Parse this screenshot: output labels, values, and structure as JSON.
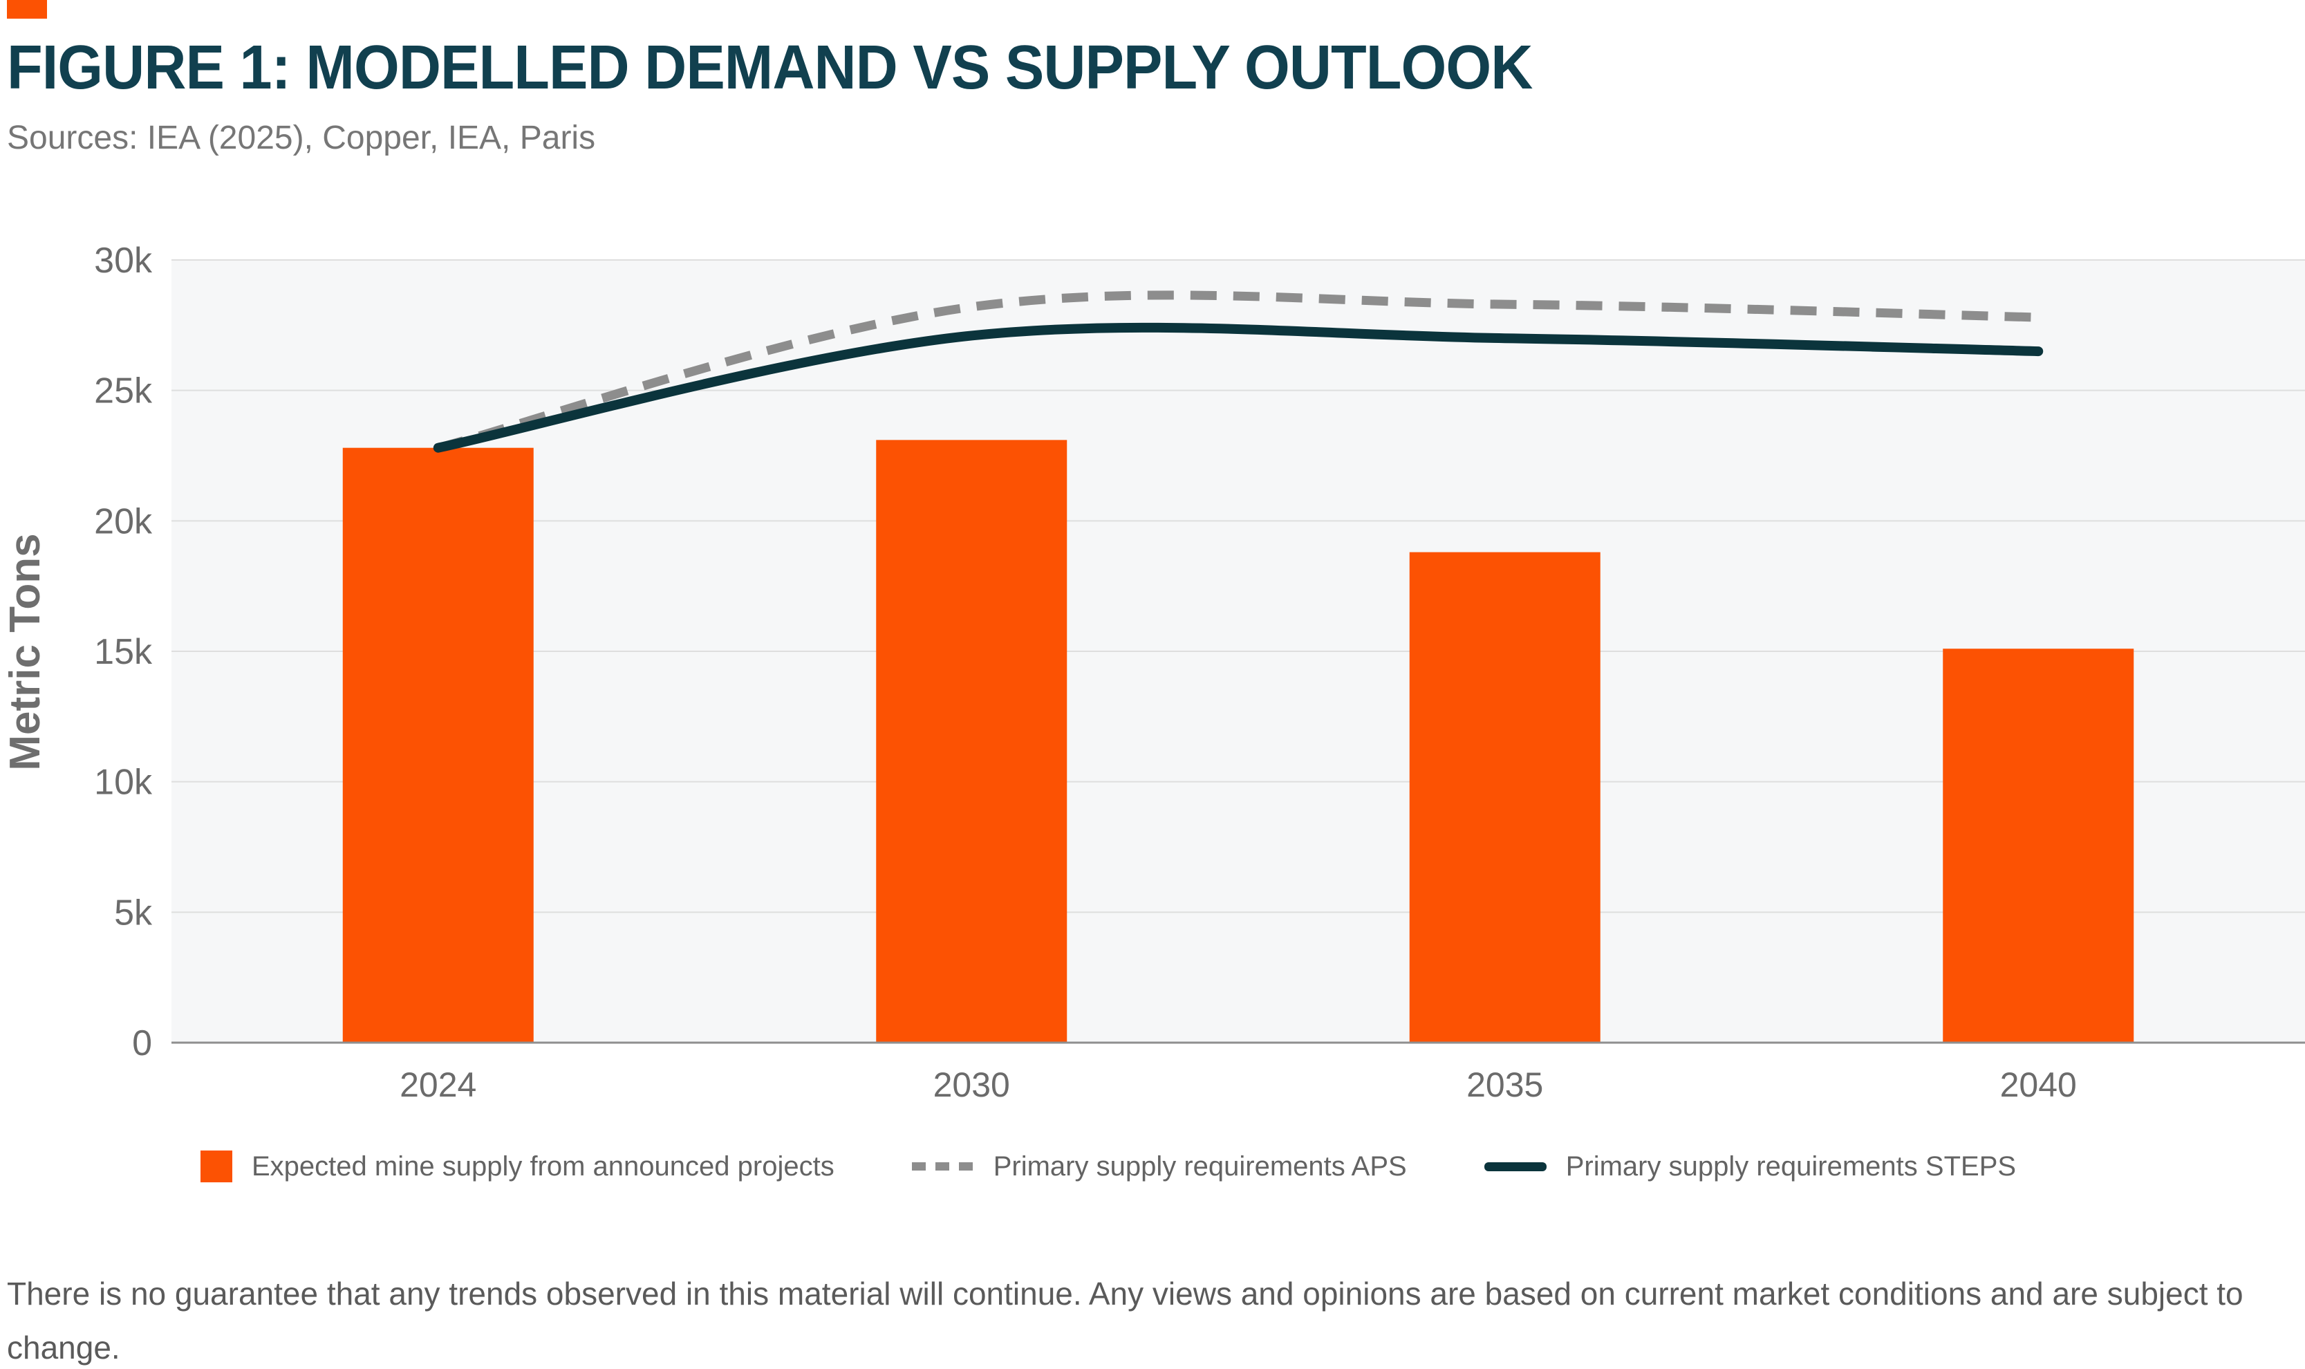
{
  "header": {
    "title": "FIGURE 1: MODELLED DEMAND VS SUPPLY OUTLOOK",
    "sources": "Sources: IEA (2025), Copper, IEA, Paris"
  },
  "chart_data": {
    "type": "bar",
    "subtype": "bar-with-lines",
    "categories": [
      "2024",
      "2030",
      "2035",
      "2040"
    ],
    "ylabel": "Metric Tons",
    "xlabel": "",
    "grid": true,
    "legend_position": "bottom",
    "axis": {
      "max": 30000,
      "tick_values": [
        0,
        5000,
        10000,
        15000,
        20000,
        25000,
        30000
      ],
      "tick_labels": [
        "0",
        "5k",
        "10k",
        "15k",
        "20k",
        "25k",
        "30k"
      ]
    },
    "series": [
      {
        "id": "mine-supply",
        "name": "Expected mine supply from announced projects",
        "type": "bar",
        "color": "#FC5203",
        "values": [
          22800,
          23100,
          18800,
          15100
        ]
      },
      {
        "id": "aps",
        "name": "Primary supply requirements APS",
        "type": "line",
        "style": "dashed",
        "color": "#8D8D8D",
        "values": [
          22800,
          28200,
          28300,
          27800
        ]
      },
      {
        "id": "steps",
        "name": "Primary supply requirements STEPS",
        "type": "line",
        "style": "solid",
        "color": "#0B343C",
        "values": [
          22800,
          27100,
          27000,
          26500
        ]
      }
    ]
  },
  "footer": {
    "disclaimer": "There is no guarantee that any trends observed in this material will continue. Any views and opinions are based on current market conditions and are subject to change."
  },
  "theme": {
    "accent_orange": "#FC5203",
    "title_color": "#11404F",
    "dark_teal": "#0B343C",
    "dashed_gray": "#8D8D8D",
    "plot_bg": "#F6F7F8",
    "grid_color": "#DEDEDE",
    "baseline_color": "#8F8F8F",
    "tick_color": "#6B6B6B"
  }
}
